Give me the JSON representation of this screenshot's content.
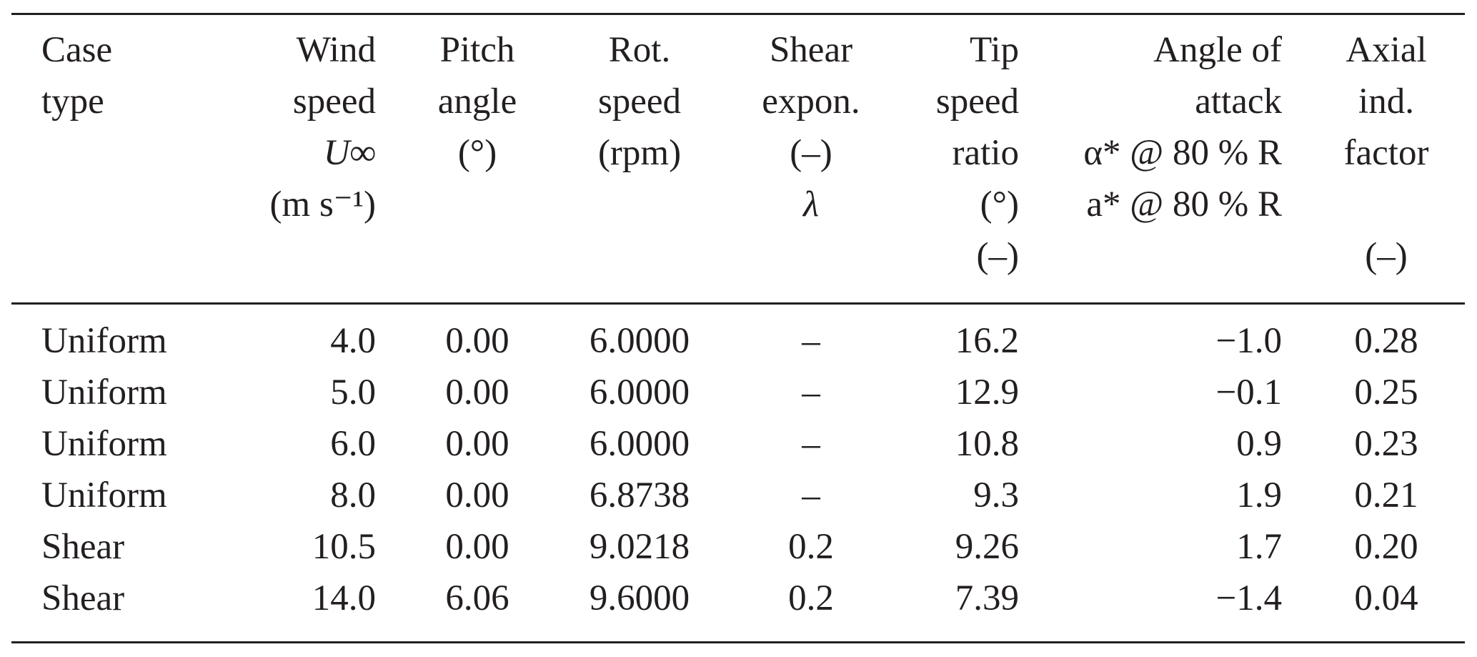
{
  "table": {
    "columns": [
      {
        "key": "case",
        "header_lines": [
          "Case",
          "type"
        ]
      },
      {
        "key": "wind",
        "header_lines": [
          "Wind",
          "speed",
          "U∞",
          "(m s⁻¹)"
        ]
      },
      {
        "key": "pitch",
        "header_lines": [
          "Pitch",
          "angle",
          "(°)"
        ]
      },
      {
        "key": "rot",
        "header_lines": [
          "Rot.",
          "speed",
          "(rpm)"
        ]
      },
      {
        "key": "shear",
        "header_lines": [
          "Shear",
          "expon.",
          "(–)",
          "λ"
        ]
      },
      {
        "key": "tsr",
        "header_lines": [
          "Tip",
          "speed",
          "ratio",
          "(°)",
          "(–)"
        ]
      },
      {
        "key": "aoa",
        "header_lines": [
          "Angle of",
          "attack",
          "α* @ 80 % R",
          "a* @ 80 % R"
        ]
      },
      {
        "key": "axial",
        "header_lines": [
          "Axial",
          "ind.",
          "factor",
          "",
          "(–)"
        ]
      }
    ],
    "rows": [
      {
        "case": "Uniform",
        "wind": "4.0",
        "pitch": "0.00",
        "rot": "6.0000",
        "shear": "–",
        "tsr": "16.2",
        "aoa": "−1.0",
        "axial": "0.28"
      },
      {
        "case": "Uniform",
        "wind": "5.0",
        "pitch": "0.00",
        "rot": "6.0000",
        "shear": "–",
        "tsr": "12.9",
        "aoa": "−0.1",
        "axial": "0.25"
      },
      {
        "case": "Uniform",
        "wind": "6.0",
        "pitch": "0.00",
        "rot": "6.0000",
        "shear": "–",
        "tsr": "10.8",
        "aoa": "0.9",
        "axial": "0.23"
      },
      {
        "case": "Uniform",
        "wind": "8.0",
        "pitch": "0.00",
        "rot": "6.8738",
        "shear": "–",
        "tsr": "9.3",
        "aoa": "1.9",
        "axial": "0.21"
      },
      {
        "case": "Shear",
        "wind": "10.5",
        "pitch": "0.00",
        "rot": "9.0218",
        "shear": "0.2",
        "tsr": "9.26",
        "aoa": "1.7",
        "axial": "0.20"
      },
      {
        "case": "Shear",
        "wind": "14.0",
        "pitch": "6.06",
        "rot": "9.6000",
        "shear": "0.2",
        "tsr": "7.39",
        "aoa": "−1.4",
        "axial": "0.04"
      }
    ]
  }
}
